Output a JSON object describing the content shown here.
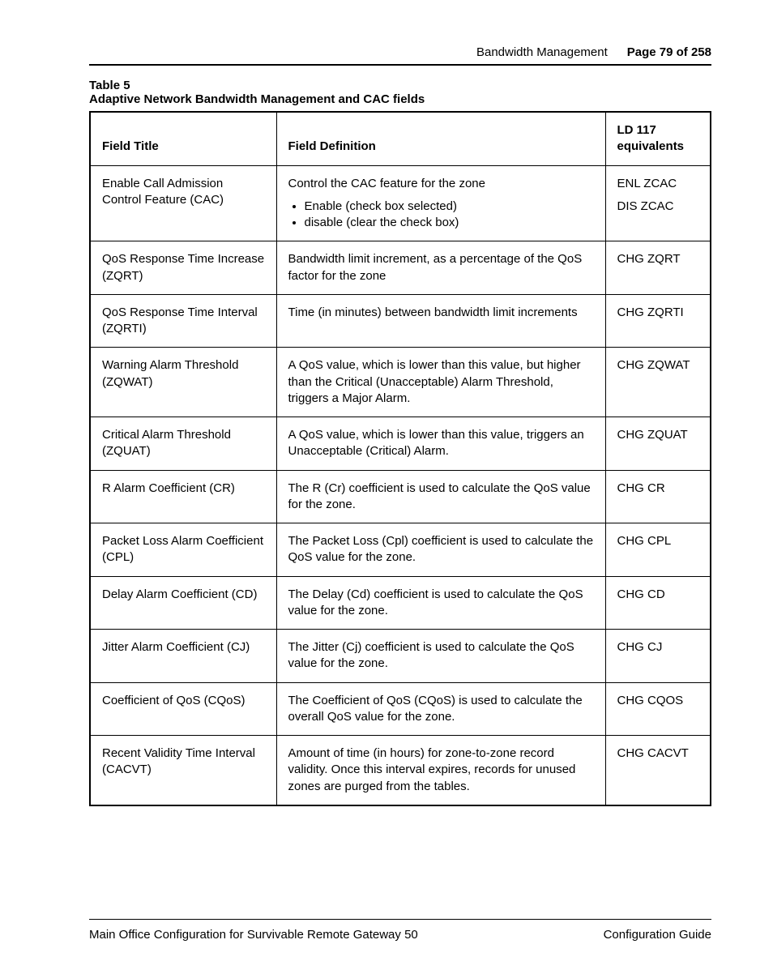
{
  "header": {
    "breadcrumb": "Bandwidth Management",
    "page_label": "Page 79 of 258"
  },
  "table_caption": {
    "number": "Table 5",
    "title": "Adaptive Network Bandwidth Management and CAC fields"
  },
  "columns": {
    "c1": "Field Title",
    "c2": "Field Definition",
    "c3": "LD 117 equivalents"
  },
  "rows": [
    {
      "title": "Enable Call Admission Control Feature (CAC)",
      "def_lead": "Control the CAC feature for the zone",
      "def_bullets": [
        "Enable (check box selected)",
        "disable (clear the check box)"
      ],
      "eq_lines": [
        "ENL ZCAC",
        "DIS ZCAC"
      ]
    },
    {
      "title": "QoS Response Time Increase (ZQRT)",
      "def_lead": "Bandwidth limit increment, as a percentage of the QoS factor for the zone",
      "def_bullets": [],
      "eq_lines": [
        "CHG ZQRT"
      ]
    },
    {
      "title": "QoS Response Time Interval (ZQRTI)",
      "def_lead": "Time (in minutes) between bandwidth limit increments",
      "def_bullets": [],
      "eq_lines": [
        "CHG ZQRTI"
      ]
    },
    {
      "title": "Warning Alarm Threshold (ZQWAT)",
      "def_lead": "A QoS value, which is lower than this value, but higher than the Critical (Unacceptable) Alarm Threshold, triggers a Major Alarm.",
      "def_bullets": [],
      "eq_lines": [
        "CHG ZQWAT"
      ]
    },
    {
      "title": "Critical Alarm Threshold (ZQUAT)",
      "def_lead": "A QoS value, which is lower than this value, triggers an Unacceptable (Critical) Alarm.",
      "def_bullets": [],
      "eq_lines": [
        "CHG ZQUAT"
      ]
    },
    {
      "title": "R Alarm Coefficient (CR)",
      "def_lead": "The R (Cr) coefficient is used to calculate the QoS value for the zone.",
      "def_bullets": [],
      "eq_lines": [
        "CHG CR"
      ]
    },
    {
      "title": "Packet Loss Alarm Coefficient (CPL)",
      "def_lead": "The Packet Loss (Cpl) coefficient is used to calculate the QoS value for the zone.",
      "def_bullets": [],
      "eq_lines": [
        "CHG CPL"
      ]
    },
    {
      "title": "Delay Alarm Coefficient (CD)",
      "def_lead": "The Delay (Cd) coefficient is used to calculate the QoS value for the zone.",
      "def_bullets": [],
      "eq_lines": [
        "CHG CD"
      ]
    },
    {
      "title": "Jitter Alarm Coefficient (CJ)",
      "def_lead": "The Jitter (Cj) coefficient is used to calculate the QoS value for the zone.",
      "def_bullets": [],
      "eq_lines": [
        "CHG CJ"
      ]
    },
    {
      "title": "Coefficient of QoS (CQoS)",
      "def_lead": "The Coefficient of QoS (CQoS) is used to calculate the overall QoS value for the zone.",
      "def_bullets": [],
      "eq_lines": [
        "CHG CQOS"
      ]
    },
    {
      "title": "Recent Validity Time Interval (CACVT)",
      "def_lead": "Amount of time (in hours) for zone-to-zone record validity. Once this interval expires, records for unused zones are purged from the tables.",
      "def_bullets": [],
      "eq_lines": [
        "CHG CACVT"
      ]
    }
  ],
  "footer": {
    "left": "Main Office Configuration for Survivable Remote Gateway 50",
    "right": "Configuration Guide"
  }
}
